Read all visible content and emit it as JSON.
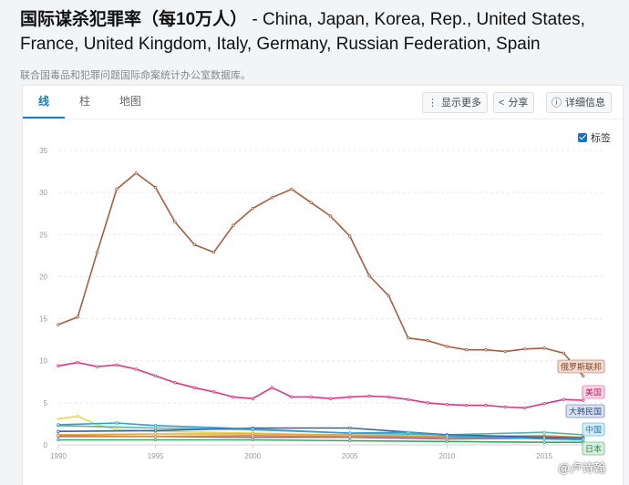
{
  "header": {
    "title_bold": "国际谋杀犯罪率（每10万人）",
    "title_rest": " - China, Japan, Korea, Rep., United States, France, United Kingdom, Italy, Germany, Russian Federation, Spain",
    "source": "联合国毒品和犯罪问题国际命案统计办公室数据库。"
  },
  "tabs": [
    {
      "label": "线",
      "active": true
    },
    {
      "label": "柱",
      "active": false
    },
    {
      "label": "地图",
      "active": false
    }
  ],
  "toolbar": {
    "more_label": "显示更多",
    "share_label": "分享",
    "details_label": "详细信息",
    "more_icon": "vertical-dots-icon",
    "share_icon": "share-icon",
    "details_icon": "info-icon"
  },
  "labels_toggle": {
    "label": "标签",
    "checked": true
  },
  "watermark": "@卢诗翰",
  "chart_data": {
    "type": "line",
    "title": "",
    "xlabel": "",
    "ylabel": "",
    "xlim": [
      1990,
      2018
    ],
    "ylim": [
      0,
      35
    ],
    "yticks": [
      0,
      5,
      10,
      15,
      20,
      25,
      30,
      35
    ],
    "xticks": [
      1990,
      1995,
      2000,
      2005,
      2010,
      2015
    ],
    "grid": true,
    "series": [
      {
        "name": "俄罗斯联邦",
        "color": "#a85b3f",
        "label_fill": "#f1dcd2",
        "label_text": "#8a4327",
        "x": [
          1990,
          1991,
          1992,
          1993,
          1994,
          1995,
          1996,
          1997,
          1998,
          1999,
          2000,
          2001,
          2002,
          2003,
          2004,
          2005,
          2006,
          2007,
          2008,
          2009,
          2010,
          2011,
          2012,
          2013,
          2014,
          2015,
          2016,
          2017
        ],
        "values": [
          14.3,
          15.2,
          22.9,
          30.4,
          32.3,
          30.6,
          26.5,
          23.8,
          22.9,
          26.1,
          28.1,
          29.4,
          30.4,
          28.8,
          27.2,
          24.8,
          20.1,
          17.7,
          12.7,
          12.4,
          11.7,
          11.3,
          11.3,
          11.1,
          11.4,
          11.5,
          10.9,
          8.2
        ]
      },
      {
        "name": "美国",
        "color": "#e0367f",
        "label_fill": "#fbd9e7",
        "label_text": "#c41f66",
        "x": [
          1990,
          1991,
          1992,
          1993,
          1994,
          1995,
          1996,
          1997,
          1998,
          1999,
          2000,
          2001,
          2002,
          2003,
          2004,
          2005,
          2006,
          2007,
          2008,
          2009,
          2010,
          2011,
          2012,
          2013,
          2014,
          2015,
          2016,
          2017
        ],
        "values": [
          9.4,
          9.8,
          9.3,
          9.5,
          9.0,
          8.2,
          7.4,
          6.8,
          6.3,
          5.7,
          5.5,
          6.8,
          5.7,
          5.7,
          5.5,
          5.7,
          5.8,
          5.7,
          5.4,
          5.0,
          4.8,
          4.7,
          4.7,
          4.5,
          4.4,
          4.9,
          5.4,
          5.3
        ]
      },
      {
        "name": "大韩民国",
        "color": "#3d5fa3",
        "label_fill": "#dbe2f2",
        "label_text": "#2e4c8e",
        "x": [
          1990,
          1995,
          2000,
          2005,
          2010,
          2015,
          2017
        ],
        "values": [
          1.6,
          1.7,
          2.0,
          2.0,
          1.2,
          0.9,
          0.8
        ]
      },
      {
        "name": "中国",
        "color": "#2f9fd8",
        "label_fill": "#d6ecf8",
        "label_text": "#1f7fb8",
        "x": [
          1990,
          1993,
          1995,
          2000,
          2005,
          2008,
          2010,
          2015,
          2017
        ],
        "values": [
          2.4,
          2.6,
          2.3,
          1.9,
          1.4,
          1.5,
          1.1,
          0.7,
          0.6
        ]
      },
      {
        "name": "日本",
        "color": "#3aa55c",
        "label_fill": "#d8efdf",
        "label_text": "#2a8848",
        "x": [
          1990,
          1995,
          2000,
          2005,
          2010,
          2015,
          2017
        ],
        "values": [
          0.6,
          0.6,
          0.6,
          0.5,
          0.4,
          0.3,
          0.3
        ]
      },
      {
        "name": "",
        "color": "#e8d84a",
        "x": [
          1990,
          1991,
          1992,
          1993,
          1995,
          2000,
          2005,
          2010,
          2015,
          2017
        ],
        "values": [
          3.1,
          3.4,
          2.4,
          1.8,
          1.6,
          1.4,
          1.1,
          0.9,
          0.8,
          0.7
        ]
      },
      {
        "name": "",
        "color": "#f2a33a",
        "x": [
          1990,
          1995,
          2000,
          2005,
          2010,
          2015,
          2017
        ],
        "values": [
          1.2,
          1.3,
          1.3,
          1.2,
          1.0,
          1.1,
          0.9
        ]
      },
      {
        "name": "",
        "color": "#56b7a0",
        "x": [
          1990,
          1995,
          2000,
          2005,
          2010,
          2015,
          2017
        ],
        "values": [
          2.3,
          2.0,
          1.8,
          1.4,
          1.2,
          1.5,
          1.2
        ]
      },
      {
        "name": "",
        "color": "#8c6bb8",
        "x": [
          1990,
          1995,
          2000,
          2005,
          2010,
          2015,
          2017
        ],
        "values": [
          1.0,
          1.0,
          0.9,
          0.9,
          0.7,
          0.8,
          0.9
        ]
      },
      {
        "name": "",
        "color": "#c48a5a",
        "x": [
          1990,
          1995,
          2000,
          2005,
          2010,
          2015,
          2017
        ],
        "values": [
          1.1,
          1.0,
          1.1,
          1.0,
          0.9,
          1.0,
          0.9
        ]
      }
    ]
  }
}
